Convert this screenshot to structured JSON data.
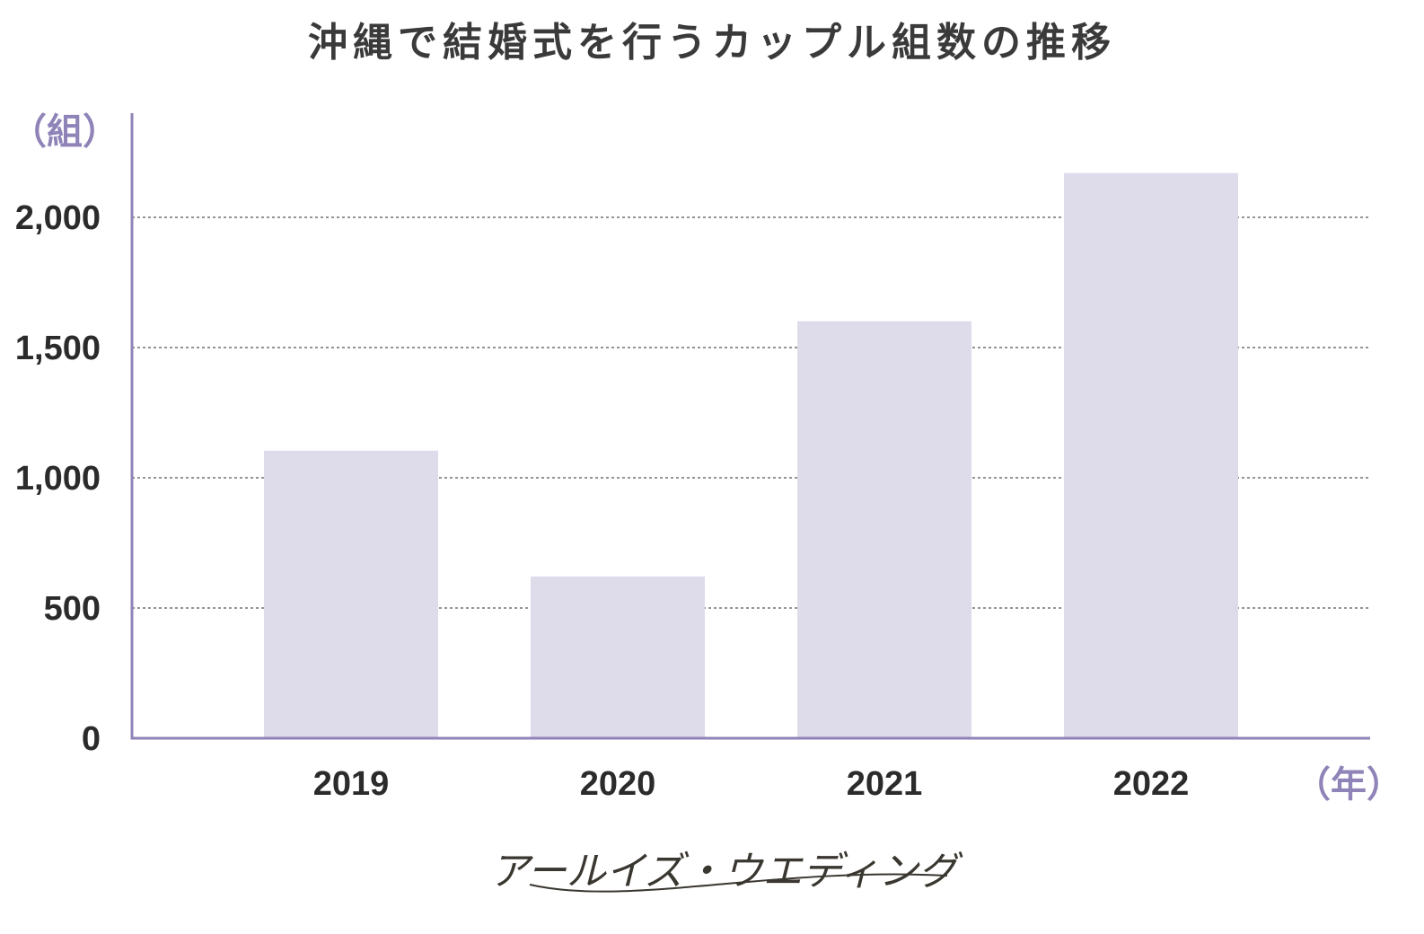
{
  "chart_data": {
    "type": "bar",
    "title": "沖縄で結婚式を行うカップル組数の推移",
    "xlabel": "（年）",
    "ylabel": "（組）",
    "categories": [
      "2019",
      "2020",
      "2021",
      "2022"
    ],
    "values": [
      1104,
      621,
      1601,
      2170
    ],
    "ylim": [
      0,
      2400
    ],
    "yticks": [
      0,
      500,
      1000,
      1500,
      2000
    ],
    "ytick_labels": [
      "0",
      "500",
      "1,000",
      "1,500",
      "2,000"
    ],
    "grid": true,
    "legend": "none"
  },
  "colors": {
    "bar": "#dedbeb",
    "axis": "#8f83b8",
    "grid": "#555555",
    "unit_label": "#8f83b8",
    "title": "#3a3a3a",
    "tick": "#2b2b2b",
    "logo": "#3a3630"
  },
  "logo": {
    "text": "アールイズ・ウエディング"
  }
}
